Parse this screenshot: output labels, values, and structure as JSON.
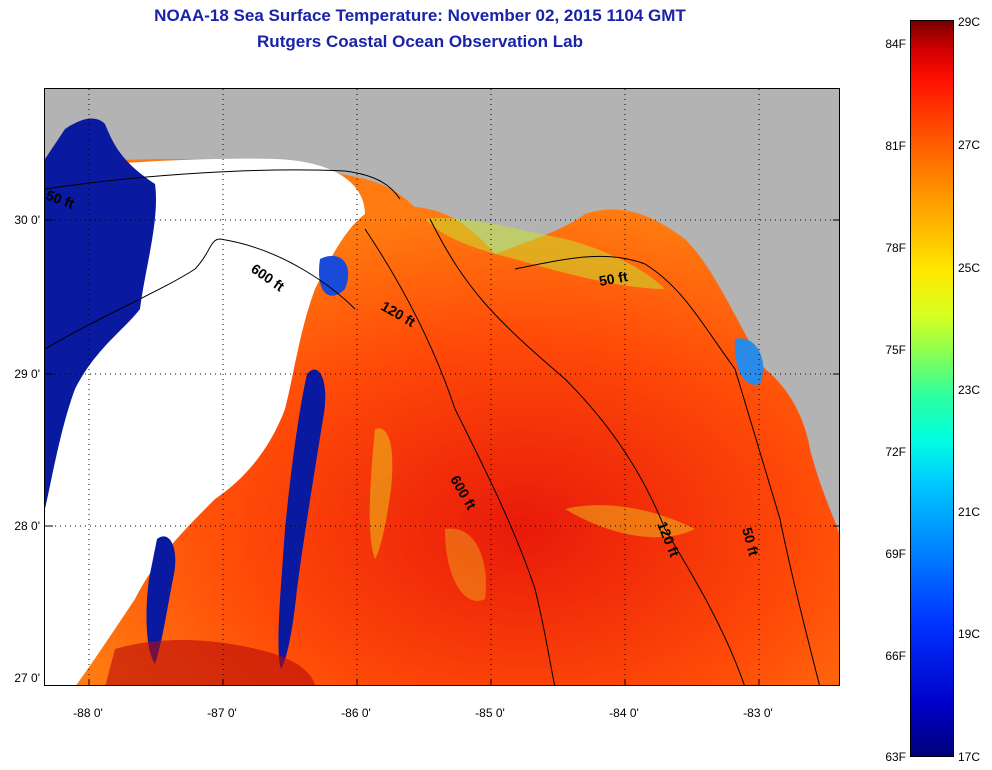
{
  "title": {
    "line1": "NOAA-18 Sea Surface Temperature:  November 02, 2015 1104 GMT",
    "line2": "Rutgers Coastal Ocean Observation Lab"
  },
  "map": {
    "lat_labels": [
      "30 0'",
      "29 0'",
      "28 0'",
      "27 0'"
    ],
    "lon_labels": [
      "-88 0'",
      "-87 0'",
      "-86 0'",
      "-85 0'",
      "-84 0'",
      "-83 0'"
    ],
    "contour_labels": [
      "50 ft",
      "600 ft",
      "120 ft",
      "50 ft",
      "600 ft",
      "120 ft",
      "50 ft"
    ],
    "colors": {
      "land": "#b3b3b3",
      "cloud": "#ffffff",
      "cold_water": "#0a1aa0",
      "warm_water": "#ff5a10",
      "hot_water": "#e02010"
    }
  },
  "colorbar": {
    "fahrenheit": [
      "84F",
      "81F",
      "78F",
      "75F",
      "72F",
      "69F",
      "66F",
      "63F"
    ],
    "celsius": [
      "29C",
      "27C",
      "25C",
      "23C",
      "21C",
      "19C",
      "17C"
    ],
    "min_c": 17,
    "max_c": 29
  }
}
